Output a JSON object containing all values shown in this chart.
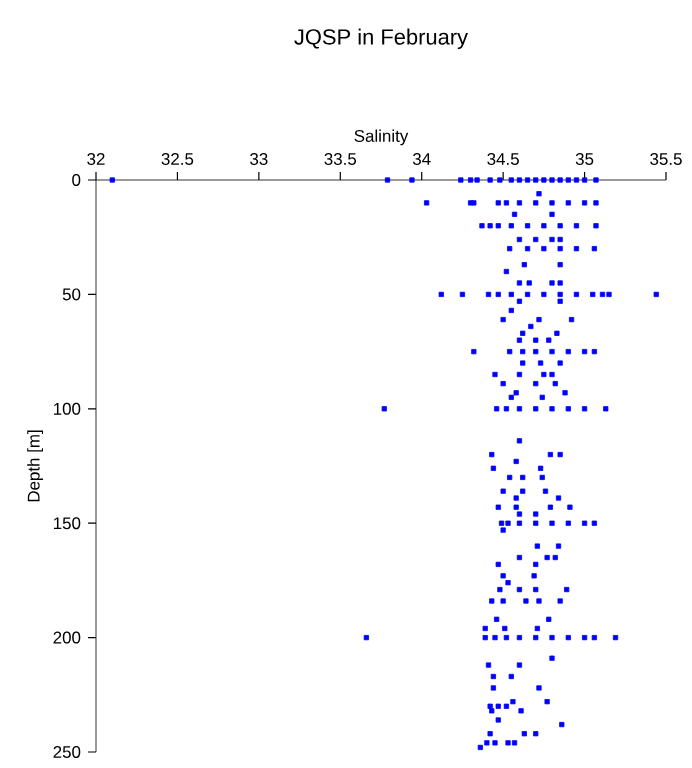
{
  "chart_data": {
    "type": "scatter",
    "title": "JQSP in February",
    "xlabel": "Salinity",
    "ylabel": "Depth [m]",
    "xlim": [
      32,
      35.5
    ],
    "xticks": [
      32,
      32.5,
      33,
      33.5,
      34,
      34.5,
      35,
      35.5
    ],
    "ylim": [
      250,
      0
    ],
    "yticks": [
      0,
      50,
      100,
      150,
      200,
      250
    ],
    "marker": "square",
    "grid": false,
    "color": "#0000ff",
    "x": [
      32.1,
      33.79,
      33.94,
      34.24,
      34.3,
      34.34,
      34.42,
      34.48,
      34.55,
      34.6,
      34.65,
      34.7,
      34.75,
      34.8,
      34.85,
      34.9,
      34.95,
      35.0,
      35.07,
      34.72,
      34.03,
      34.3,
      34.32,
      34.47,
      34.52,
      34.6,
      34.7,
      34.8,
      34.9,
      35.0,
      35.07,
      34.57,
      34.8,
      34.37,
      34.42,
      34.47,
      34.55,
      34.65,
      34.75,
      34.85,
      34.95,
      35.07,
      34.6,
      34.7,
      34.8,
      34.85,
      34.54,
      34.65,
      34.75,
      34.85,
      34.95,
      35.06,
      34.63,
      34.85,
      34.52,
      34.6,
      34.66,
      34.8,
      34.85,
      34.12,
      34.25,
      34.41,
      34.47,
      34.55,
      34.65,
      34.75,
      34.85,
      34.95,
      35.05,
      35.11,
      35.15,
      35.44,
      34.6,
      34.85,
      34.55,
      34.5,
      34.72,
      34.92,
      34.67,
      34.62,
      34.83,
      34.6,
      34.7,
      34.78,
      34.32,
      34.54,
      34.62,
      34.7,
      34.8,
      34.9,
      35.0,
      35.06,
      34.62,
      34.73,
      34.85,
      34.45,
      34.6,
      34.75,
      34.8,
      34.5,
      34.7,
      34.82,
      34.58,
      34.88,
      34.55,
      34.74,
      33.77,
      34.46,
      34.52,
      34.6,
      34.7,
      34.8,
      34.9,
      35.0,
      35.13,
      34.6,
      34.43,
      34.79,
      34.85,
      34.58,
      34.44,
      34.73,
      34.54,
      34.62,
      34.74,
      34.5,
      34.62,
      34.76,
      34.58,
      34.84,
      34.47,
      34.58,
      34.79,
      34.91,
      34.6,
      34.7,
      34.49,
      34.53,
      34.6,
      34.7,
      34.8,
      34.9,
      35.0,
      35.06,
      34.5,
      34.71,
      34.84,
      34.6,
      34.77,
      34.82,
      34.47,
      34.7,
      34.5,
      34.69,
      34.53,
      34.48,
      34.6,
      34.7,
      34.89,
      34.43,
      34.5,
      34.64,
      34.72,
      34.85,
      34.46,
      34.78,
      34.39,
      34.51,
      34.71,
      33.66,
      34.39,
      34.45,
      34.52,
      34.6,
      34.7,
      34.8,
      34.9,
      35.0,
      35.06,
      35.19,
      34.8,
      34.41,
      34.6,
      34.44,
      34.55,
      34.44,
      34.72,
      34.56,
      34.77,
      34.42,
      34.47,
      34.52,
      34.43,
      34.61,
      34.47,
      34.86,
      34.42,
      34.63,
      34.7,
      34.4,
      34.45,
      34.53,
      34.57,
      34.36
    ],
    "values": [
      0,
      0,
      0,
      0,
      0,
      0,
      0,
      0,
      0,
      0,
      0,
      0,
      0,
      0,
      0,
      0,
      0,
      0,
      0,
      6,
      10,
      10,
      10,
      10,
      10,
      10,
      10,
      10,
      10,
      10,
      10,
      15,
      15,
      20,
      20,
      20,
      20,
      20,
      20,
      20,
      20,
      20,
      26,
      26,
      26,
      26,
      30,
      30,
      30,
      30,
      30,
      30,
      37,
      37,
      40,
      45,
      45,
      45,
      45,
      50,
      50,
      50,
      50,
      50,
      50,
      50,
      50,
      50,
      50,
      50,
      50,
      50,
      53,
      53,
      57,
      61,
      61,
      61,
      64,
      67,
      67,
      70,
      70,
      70,
      75,
      75,
      75,
      75,
      75,
      75,
      75,
      75,
      80,
      80,
      80,
      85,
      85,
      85,
      85,
      89,
      89,
      89,
      93,
      93,
      95,
      95,
      100,
      100,
      100,
      100,
      100,
      100,
      100,
      100,
      100,
      114,
      120,
      120,
      120,
      123,
      126,
      126,
      130,
      130,
      130,
      136,
      136,
      136,
      139,
      139,
      143,
      143,
      143,
      143,
      146,
      146,
      150,
      150,
      150,
      150,
      150,
      150,
      150,
      150,
      153,
      160,
      160,
      165,
      165,
      165,
      168,
      168,
      173,
      173,
      176,
      179,
      179,
      179,
      179,
      184,
      184,
      184,
      184,
      184,
      192,
      192,
      196,
      196,
      196,
      200,
      200,
      200,
      200,
      200,
      200,
      200,
      200,
      200,
      200,
      200,
      209,
      212,
      212,
      217,
      217,
      222,
      222,
      228,
      228,
      230,
      230,
      230,
      232,
      232,
      236,
      238,
      242,
      242,
      242,
      246,
      246,
      246,
      246,
      248
    ]
  }
}
